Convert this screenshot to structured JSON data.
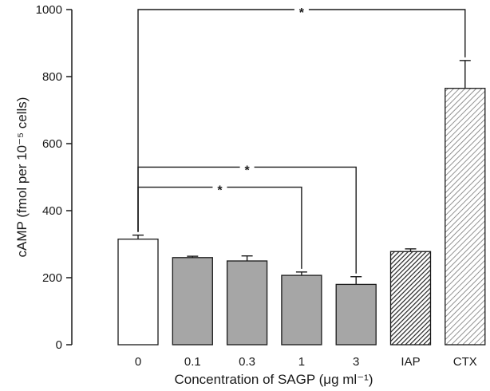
{
  "chart_data": {
    "type": "bar",
    "title": "",
    "xlabel": "Concentration of SAGP (μg ml⁻¹)",
    "ylabel": "cAMP (fmol per 10⁻⁵ cells)",
    "ylim": [
      0,
      1000
    ],
    "yticks": [
      "0",
      "200",
      "400",
      "600",
      "800",
      "1000"
    ],
    "categories": [
      "0",
      "0.1",
      "0.3",
      "1",
      "3",
      "IAP",
      "CTX"
    ],
    "values": [
      315,
      260,
      250,
      207,
      180,
      278,
      765
    ],
    "errors": [
      12,
      4,
      15,
      10,
      23,
      8,
      83
    ],
    "bar_styles": [
      "open",
      "solid-gray",
      "solid-gray",
      "solid-gray",
      "solid-gray",
      "dense-hatch",
      "light-hatch"
    ],
    "colors": {
      "open": "#ffffff",
      "solid-gray": "#a6a6a6",
      "dense-hatch": "#222222",
      "light-hatch": "#777777",
      "axis": "#1a1a1a"
    },
    "significance": [
      {
        "from": "0",
        "to": "1",
        "label": "*",
        "y": 470
      },
      {
        "from": "0",
        "to": "3",
        "label": "*",
        "y": 530
      },
      {
        "from": "0",
        "to": "CTX",
        "label": "*",
        "y": 1000
      }
    ]
  }
}
